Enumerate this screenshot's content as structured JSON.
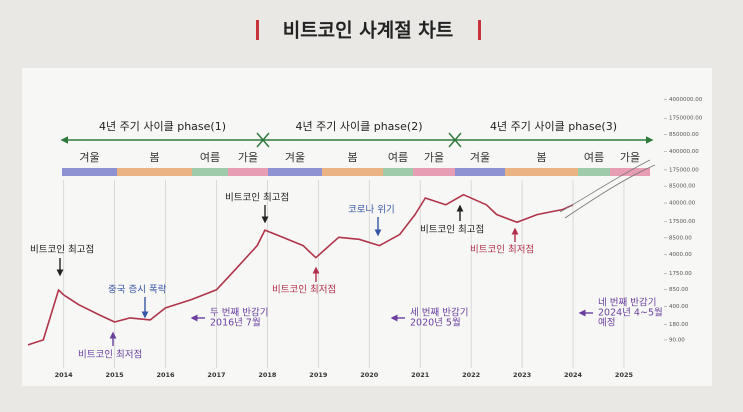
{
  "chart_data": {
    "type": "line",
    "title": "비트코인 사계절 차트",
    "x": [
      2013.3,
      2013.6,
      2013.9,
      2014.0,
      2014.3,
      2014.7,
      2015.0,
      2015.3,
      2015.7,
      2016.0,
      2016.5,
      2017.0,
      2017.4,
      2017.8,
      2017.95,
      2018.3,
      2018.7,
      2018.95,
      2019.4,
      2019.8,
      2020.2,
      2020.6,
      2020.9,
      2021.1,
      2021.5,
      2021.85,
      2022.3,
      2022.5,
      2022.9,
      2023.3,
      2023.8,
      2024.0
    ],
    "values": [
      72,
      90,
      837,
      670,
      430,
      275,
      200,
      240,
      220,
      375,
      540,
      840,
      2230,
      6000,
      12000,
      8700,
      6000,
      3500,
      8700,
      7950,
      6000,
      9900,
      24000,
      50000,
      37000,
      58000,
      37000,
      24000,
      17000,
      24000,
      30000,
      37000
    ],
    "color": "#b0344a",
    "log_scale": true,
    "grid": true,
    "xlim": [
      2013.3,
      2026.1
    ],
    "xticks": [
      2014,
      2015,
      2016,
      2017,
      2018,
      2019,
      2020,
      2021,
      2022,
      2023,
      2024,
      2025
    ],
    "ylim": [
      46,
      12000000
    ],
    "yticks": [
      {
        "value": 90,
        "label": "90.00"
      },
      {
        "value": 180,
        "label": "180.00"
      },
      {
        "value": 400,
        "label": "400.00"
      },
      {
        "value": 850,
        "label": "850.00"
      },
      {
        "value": 1750,
        "label": "1750.00"
      },
      {
        "value": 4000,
        "label": "4000.00"
      },
      {
        "value": 8500,
        "label": "8500.00"
      },
      {
        "value": 17500,
        "label": "17500.00"
      },
      {
        "value": 40000,
        "label": "40000.00"
      },
      {
        "value": 85000,
        "label": "85000.00"
      },
      {
        "value": 175000,
        "label": "175000.00"
      },
      {
        "value": 400000,
        "label": "400000.00"
      },
      {
        "value": 850000,
        "label": "850000.00"
      },
      {
        "value": 1750000,
        "label": "1750000.00"
      },
      {
        "value": 4000000,
        "label": "4000000.00"
      }
    ],
    "phases": [
      "4년 주기 사이클 phase(1)",
      "4년 주기 사이클 phase(2)",
      "4년 주기 사이클 phase(3)"
    ],
    "seasons": [
      {
        "label": "겨울",
        "color": "#8e92d2"
      },
      {
        "label": "봄",
        "color": "#e9b384"
      },
      {
        "label": "여름",
        "color": "#9fcbab"
      },
      {
        "label": "가을",
        "color": "#e79db3"
      },
      {
        "label": "겨울",
        "color": "#8e92d2"
      },
      {
        "label": "봄",
        "color": "#e9b384"
      },
      {
        "label": "여름",
        "color": "#9fcbab"
      },
      {
        "label": "가을",
        "color": "#e79db3"
      },
      {
        "label": "겨울",
        "color": "#8e92d2"
      },
      {
        "label": "봄",
        "color": "#e9b384"
      },
      {
        "label": "여름",
        "color": "#9fcbab"
      },
      {
        "label": "가을",
        "color": "#e79db3"
      }
    ],
    "annotations": [
      {
        "lines": [
          "비트코인 최고점"
        ],
        "color": "#222222"
      },
      {
        "lines": [
          "중국 증시 폭락"
        ],
        "color": "#3656a8"
      },
      {
        "lines": [
          "비트코인 최저점"
        ],
        "color": "#6a3fa0"
      },
      {
        "lines": [
          "두 번째 반감기",
          "2016년 7월"
        ],
        "color": "#6a3fa0"
      },
      {
        "lines": [
          "비트코인 최고점"
        ],
        "color": "#222222"
      },
      {
        "lines": [
          "비트코인 최저점"
        ],
        "color": "#b0304a"
      },
      {
        "lines": [
          "코로나 위기"
        ],
        "color": "#3656a8"
      },
      {
        "lines": [
          "세 번째 반감기",
          "2020년 5월"
        ],
        "color": "#6a3fa0"
      },
      {
        "lines": [
          "비트코인 최고점"
        ],
        "color": "#222222"
      },
      {
        "lines": [
          "비트코인 최저점"
        ],
        "color": "#b0304a"
      },
      {
        "lines": [
          "네 번째 반감기",
          "2024년 4~5월",
          "예정"
        ],
        "color": "#6a3fa0"
      }
    ]
  }
}
